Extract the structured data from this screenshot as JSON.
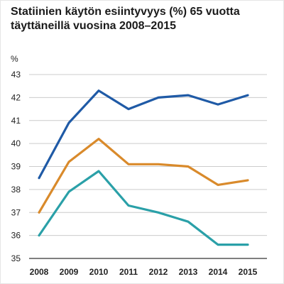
{
  "chart_data": {
    "type": "line",
    "title": "Statiinien käytön esiintyvyys (%) 65 vuotta täyttäneillä vuosina 2008–2015",
    "ylabel": "%",
    "x": [
      "2008",
      "2009",
      "2010",
      "2011",
      "2012",
      "2013",
      "2014",
      "2015"
    ],
    "ylim": [
      35,
      43
    ],
    "yticks": [
      35,
      36,
      37,
      38,
      39,
      40,
      41,
      42,
      43
    ],
    "grid": "horizontal",
    "legend": "none",
    "series": [
      {
        "color": "#1f5aa6",
        "values": [
          38.5,
          40.9,
          42.3,
          41.5,
          42.0,
          42.1,
          41.7,
          42.1
        ]
      },
      {
        "color": "#d98a2b",
        "values": [
          37.0,
          39.2,
          40.2,
          39.1,
          39.1,
          39.0,
          38.2,
          38.4
        ]
      },
      {
        "color": "#2aa0a8",
        "values": [
          36.0,
          37.9,
          38.8,
          37.3,
          37.0,
          36.6,
          35.6,
          35.6
        ]
      }
    ]
  }
}
